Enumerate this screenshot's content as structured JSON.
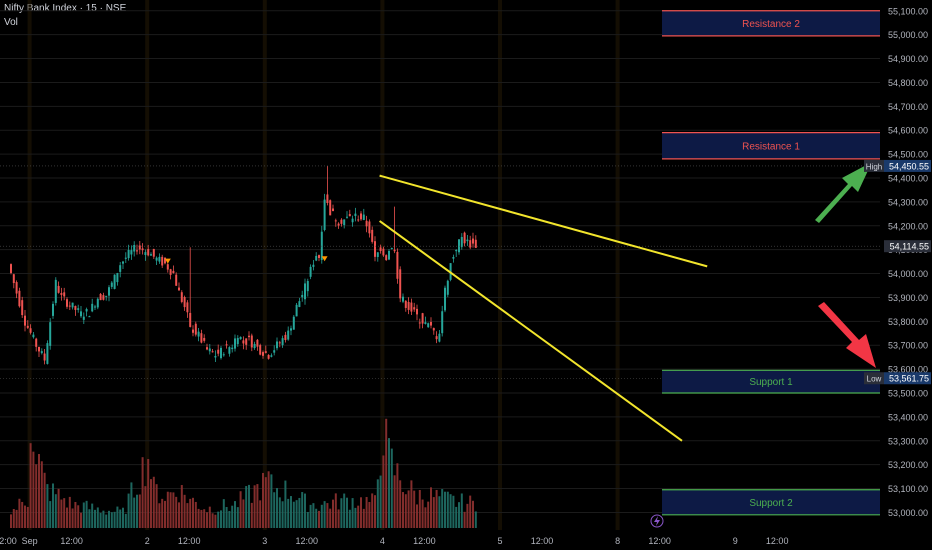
{
  "header": {
    "title": "Nifty Bank Index · 15 · NSE",
    "indicator": "Vol"
  },
  "colors": {
    "up": "#26a69a",
    "down": "#ef5350",
    "grid": "#1b1b1b",
    "trend": "#f2e52c",
    "resistance_text": "#ef5350",
    "support_text": "#4caf50",
    "zone_fill": "#0d1a45",
    "text": "#b2b5be",
    "high_box": "#1a3a6b",
    "arrow_up": "#4caf50",
    "arrow_down": "#f23645"
  },
  "chart_data": {
    "type": "candlestick",
    "title": "Nifty Bank Index · 15 · NSE",
    "ylim": [
      52960,
      55120
    ],
    "y_ticks": [
      53000,
      53100,
      53200,
      53300,
      53400,
      53500,
      53600,
      53700,
      53800,
      53900,
      54000,
      54100,
      54200,
      54300,
      54400,
      54500,
      54600,
      54700,
      54800,
      54900,
      55000,
      55100
    ],
    "y_tick_labels": [
      "53,000.00",
      "53,100.00",
      "53,200.00",
      "53,300.00",
      "53,400.00",
      "53,500.00",
      "53,600.00",
      "53,700.00",
      "53,800.00",
      "53,900.00",
      "54,000.00",
      "54,100.00",
      "54,200.00",
      "54,300.00",
      "54,400.00",
      "54,500.00",
      "54,600.00",
      "54,700.00",
      "54,800.00",
      "54,900.00",
      "55,000.00",
      "55,100.00"
    ],
    "x_labels": [
      {
        "label": "2:00",
        "bar": -3
      },
      {
        "label": "Sep",
        "bar": 7
      },
      {
        "label": "12:00",
        "bar": 22
      },
      {
        "label": "2",
        "bar": 49
      },
      {
        "label": "12:00",
        "bar": 64
      },
      {
        "label": "3",
        "bar": 91
      },
      {
        "label": "12:00",
        "bar": 106
      },
      {
        "label": "4",
        "bar": 133
      },
      {
        "label": "12:00",
        "bar": 148
      },
      {
        "label": "5",
        "bar": 175
      },
      {
        "label": "12:00",
        "bar": 190
      },
      {
        "label": "8",
        "bar": 217
      },
      {
        "label": "12:00",
        "bar": 232
      },
      {
        "label": "9",
        "bar": 259
      },
      {
        "label": "12:00",
        "bar": 274
      }
    ],
    "session_starts": [
      7,
      49,
      91,
      133,
      175,
      217
    ],
    "num_bars": 207,
    "price_path": [
      [
        0,
        54040
      ],
      [
        3,
        53920
      ],
      [
        6,
        53800
      ],
      [
        10,
        53700
      ],
      [
        13,
        53640
      ],
      [
        15,
        53800
      ],
      [
        17,
        53960
      ],
      [
        19,
        53900
      ],
      [
        22,
        53870
      ],
      [
        26,
        53830
      ],
      [
        29,
        53840
      ],
      [
        32,
        53900
      ],
      [
        35,
        53910
      ],
      [
        38,
        53980
      ],
      [
        40,
        54040
      ],
      [
        43,
        54080
      ],
      [
        46,
        54110
      ],
      [
        48,
        54100
      ],
      [
        50,
        54090
      ],
      [
        53,
        54060
      ],
      [
        56,
        54040
      ],
      [
        59,
        54000
      ],
      [
        61,
        53920
      ],
      [
        63,
        53860
      ],
      [
        65,
        53780
      ],
      [
        68,
        53740
      ],
      [
        71,
        53680
      ],
      [
        74,
        53660
      ],
      [
        77,
        53680
      ],
      [
        80,
        53700
      ],
      [
        82,
        53750
      ],
      [
        84,
        53710
      ],
      [
        86,
        53720
      ],
      [
        88,
        53700
      ],
      [
        90,
        53680
      ],
      [
        93,
        53660
      ],
      [
        96,
        53700
      ],
      [
        100,
        53750
      ],
      [
        103,
        53860
      ],
      [
        106,
        53940
      ],
      [
        109,
        54050
      ],
      [
        110,
        54080
      ],
      [
        111,
        54070
      ],
      [
        113,
        54320
      ],
      [
        115,
        54260
      ],
      [
        118,
        54220
      ],
      [
        121,
        54230
      ],
      [
        124,
        54240
      ],
      [
        127,
        54230
      ],
      [
        129,
        54180
      ],
      [
        131,
        54060
      ],
      [
        133,
        54110
      ],
      [
        135,
        54070
      ],
      [
        137,
        54120
      ],
      [
        138,
        54090
      ],
      [
        140,
        53900
      ],
      [
        143,
        53860
      ],
      [
        146,
        53820
      ],
      [
        149,
        53790
      ],
      [
        151,
        53770
      ],
      [
        153,
        53740
      ],
      [
        154,
        53760
      ],
      [
        156,
        53930
      ],
      [
        158,
        54040
      ],
      [
        160,
        54110
      ],
      [
        162,
        54150
      ],
      [
        164,
        54130
      ],
      [
        166,
        54120
      ]
    ],
    "wicks": [
      [
        113,
        54450
      ],
      [
        137,
        54280
      ],
      [
        64,
        54110
      ]
    ],
    "markers": [
      [
        56,
        54050
      ],
      [
        112,
        54060
      ]
    ],
    "volumes": [
      [
        0,
        0.12
      ],
      [
        3,
        0.18
      ],
      [
        6,
        0.22
      ],
      [
        7,
        0.9
      ],
      [
        8,
        0.7
      ],
      [
        9,
        0.45
      ],
      [
        10,
        0.5
      ],
      [
        13,
        0.3
      ],
      [
        17,
        0.25
      ],
      [
        22,
        0.18
      ],
      [
        30,
        0.15
      ],
      [
        40,
        0.12
      ],
      [
        49,
        0.55
      ],
      [
        50,
        0.45
      ],
      [
        51,
        0.3
      ],
      [
        55,
        0.25
      ],
      [
        60,
        0.3
      ],
      [
        64,
        0.22
      ],
      [
        70,
        0.15
      ],
      [
        80,
        0.18
      ],
      [
        91,
        0.35
      ],
      [
        92,
        0.38
      ],
      [
        93,
        0.32
      ],
      [
        96,
        0.3
      ],
      [
        100,
        0.28
      ],
      [
        105,
        0.2
      ],
      [
        110,
        0.18
      ],
      [
        120,
        0.22
      ],
      [
        130,
        0.2
      ],
      [
        133,
        0.8
      ],
      [
        134,
        0.65
      ],
      [
        135,
        0.55
      ],
      [
        137,
        0.45
      ],
      [
        140,
        0.35
      ],
      [
        145,
        0.25
      ],
      [
        150,
        0.25
      ],
      [
        160,
        0.2
      ],
      [
        170,
        0.18
      ],
      [
        175,
        0.55
      ],
      [
        176,
        0.6
      ],
      [
        177,
        0.45
      ],
      [
        180,
        0.35
      ],
      [
        185,
        0.3
      ],
      [
        190,
        0.25
      ],
      [
        195,
        0.3
      ],
      [
        200,
        0.35
      ],
      [
        205,
        0.25
      ],
      [
        206,
        0.2
      ]
    ],
    "trendlines": [
      {
        "x1": 132,
        "y1": 54410,
        "x2": 249,
        "y2": 54030
      },
      {
        "x1": 132,
        "y1": 54220,
        "x2": 240,
        "y2": 53300
      }
    ],
    "zones": [
      {
        "label": "Resistance 2",
        "top": 55100,
        "bottom": 54995,
        "kind": "resistance"
      },
      {
        "label": "Resistance 1",
        "top": 54590,
        "bottom": 54480,
        "kind": "resistance"
      },
      {
        "label": "Support 1",
        "top": 53595,
        "bottom": 53500,
        "kind": "support"
      },
      {
        "label": "Support 2",
        "top": 53095,
        "bottom": 52990,
        "kind": "support"
      }
    ],
    "price_lines": [
      {
        "label": "High",
        "value": 54450.55,
        "text": "54,450.55"
      },
      {
        "label": "",
        "value": 54114.55,
        "text": "54,114.55"
      },
      {
        "label": "Low",
        "value": 53561.75,
        "text": "53,561.75"
      }
    ],
    "legend": "none",
    "grid": false
  }
}
